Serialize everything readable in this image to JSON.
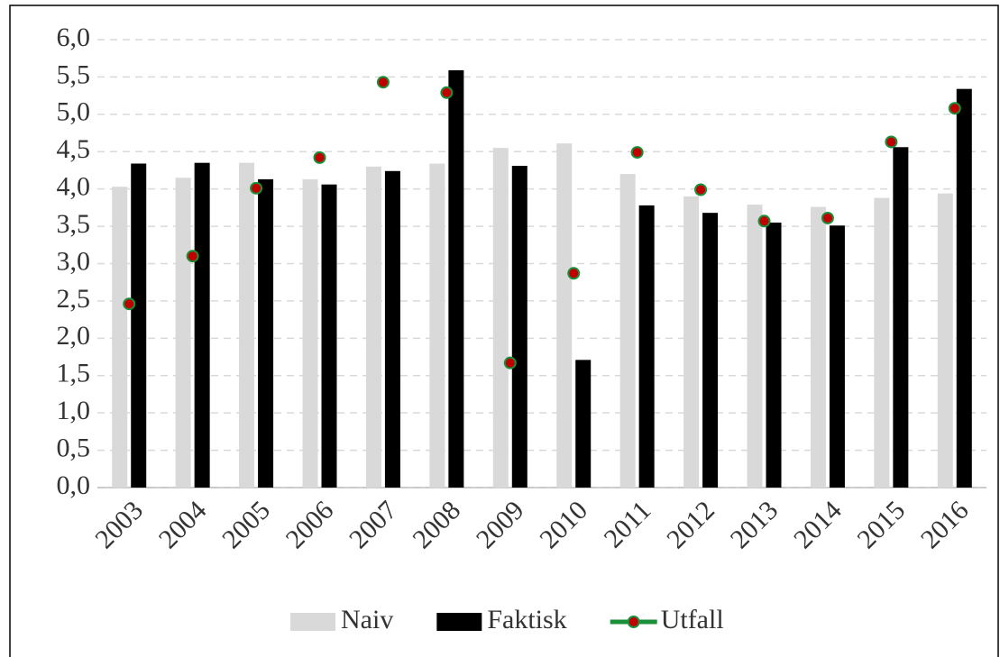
{
  "chart_data": {
    "type": "bar",
    "categories": [
      "2003",
      "2004",
      "2005",
      "2006",
      "2007",
      "2008",
      "2009",
      "2010",
      "2011",
      "2012",
      "2013",
      "2014",
      "2015",
      "2016"
    ],
    "series": [
      {
        "name": "Naiv",
        "color": "#d9d9d9",
        "values": [
          4.03,
          4.15,
          4.35,
          4.13,
          4.3,
          4.34,
          4.55,
          4.61,
          4.2,
          3.9,
          3.79,
          3.76,
          3.88,
          3.94
        ]
      },
      {
        "name": "Faktisk",
        "color": "#000000",
        "values": [
          4.34,
          4.35,
          4.13,
          4.06,
          4.24,
          5.59,
          4.31,
          1.71,
          3.78,
          3.68,
          3.55,
          3.51,
          4.56,
          5.34
        ]
      },
      {
        "name": "Utfall",
        "type": "line",
        "color": "#1a8f3a",
        "marker_color": "#c00000",
        "values": [
          2.46,
          3.1,
          4.01,
          4.42,
          5.43,
          5.29,
          1.67,
          2.87,
          4.49,
          3.99,
          3.57,
          3.61,
          4.63,
          5.08
        ]
      }
    ],
    "ylim": [
      0,
      6
    ],
    "yticks": [
      {
        "value": 0,
        "label": "0,0"
      },
      {
        "value": 0.5,
        "label": "0,5"
      },
      {
        "value": 1,
        "label": "1,0"
      },
      {
        "value": 1.5,
        "label": "1,5"
      },
      {
        "value": 2,
        "label": "2,0"
      },
      {
        "value": 2.5,
        "label": "2,5"
      },
      {
        "value": 3,
        "label": "3,0"
      },
      {
        "value": 3.5,
        "label": "3,5"
      },
      {
        "value": 4,
        "label": "4,0"
      },
      {
        "value": 4.5,
        "label": "4,5"
      },
      {
        "value": 5,
        "label": "5,0"
      },
      {
        "value": 5.5,
        "label": "5,5"
      },
      {
        "value": 6,
        "label": "6,0"
      }
    ],
    "grid": true,
    "legend": "bottom"
  }
}
